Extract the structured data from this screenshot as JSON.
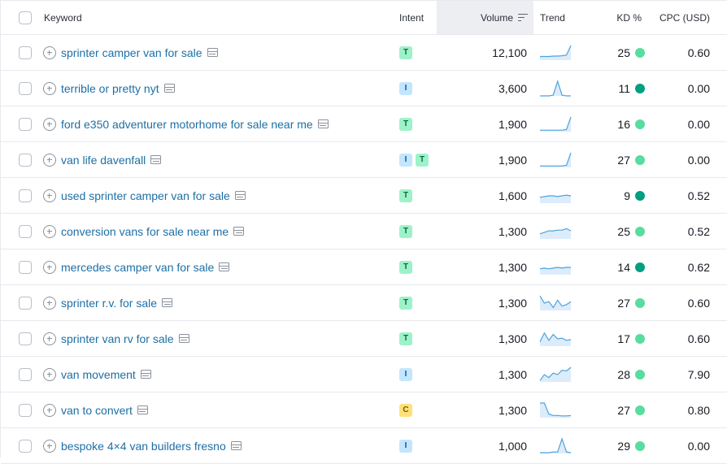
{
  "columns": {
    "keyword": "Keyword",
    "intent": "Intent",
    "volume": "Volume",
    "trend": "Trend",
    "kd": "KD %",
    "cpc": "CPC (USD)"
  },
  "colors": {
    "kd_light": "#59dc9f",
    "kd_dark": "#009f81",
    "trend_line": "#4ea3dc",
    "trend_fill": "#dcecfb"
  },
  "rows": [
    {
      "keyword": "sprinter camper van for sale",
      "intents": [
        "T"
      ],
      "volume": "12,100",
      "trend": [
        0.25,
        0.25,
        0.25,
        0.28,
        0.28,
        0.3,
        0.35,
        1.0
      ],
      "kd": "25",
      "kd_level": "light",
      "cpc": "0.60"
    },
    {
      "keyword": "terrible or pretty nyt",
      "intents": [
        "I"
      ],
      "volume": "3,600",
      "trend": [
        0.0,
        0.0,
        0.0,
        0.05,
        1.0,
        0.05,
        0.0,
        0.0
      ],
      "kd": "11",
      "kd_level": "dark",
      "cpc": "0.00"
    },
    {
      "keyword": "ford e350 adventurer motorhome for sale near me",
      "intents": [
        "T"
      ],
      "volume": "1,900",
      "trend": [
        0.1,
        0.1,
        0.1,
        0.1,
        0.1,
        0.1,
        0.15,
        1.0
      ],
      "kd": "16",
      "kd_level": "light",
      "cpc": "0.00"
    },
    {
      "keyword": "van life davenfall",
      "intents": [
        "I",
        "T"
      ],
      "volume": "1,900",
      "trend": [
        0.1,
        0.1,
        0.1,
        0.1,
        0.1,
        0.1,
        0.15,
        1.0
      ],
      "kd": "27",
      "kd_level": "light",
      "cpc": "0.00"
    },
    {
      "keyword": "used sprinter camper van for sale",
      "intents": [
        "T"
      ],
      "volume": "1,600",
      "trend": [
        0.4,
        0.45,
        0.5,
        0.5,
        0.45,
        0.5,
        0.55,
        0.5
      ],
      "kd": "9",
      "kd_level": "dark",
      "cpc": "0.52"
    },
    {
      "keyword": "conversion vans for sale near me",
      "intents": [
        "T"
      ],
      "volume": "1,300",
      "trend": [
        0.35,
        0.45,
        0.55,
        0.55,
        0.6,
        0.6,
        0.7,
        0.55
      ],
      "kd": "25",
      "kd_level": "light",
      "cpc": "0.52"
    },
    {
      "keyword": "mercedes camper van for sale",
      "intents": [
        "T"
      ],
      "volume": "1,300",
      "trend": [
        0.4,
        0.45,
        0.4,
        0.45,
        0.5,
        0.45,
        0.5,
        0.5
      ],
      "kd": "14",
      "kd_level": "dark",
      "cpc": "0.62"
    },
    {
      "keyword": "sprinter r.v. for sale",
      "intents": [
        "T"
      ],
      "volume": "1,300",
      "trend": [
        1.0,
        0.5,
        0.6,
        0.2,
        0.7,
        0.3,
        0.4,
        0.6
      ],
      "kd": "27",
      "kd_level": "light",
      "cpc": "0.60"
    },
    {
      "keyword": "sprinter van rv for sale",
      "intents": [
        "T"
      ],
      "volume": "1,300",
      "trend": [
        0.3,
        0.9,
        0.4,
        0.8,
        0.5,
        0.55,
        0.4,
        0.45
      ],
      "kd": "17",
      "kd_level": "light",
      "cpc": "0.60"
    },
    {
      "keyword": "van movement",
      "intents": [
        "I"
      ],
      "volume": "1,300",
      "trend": [
        0.1,
        0.5,
        0.3,
        0.6,
        0.5,
        0.8,
        0.75,
        1.0
      ],
      "kd": "28",
      "kd_level": "light",
      "cpc": "7.90"
    },
    {
      "keyword": "van to convert",
      "intents": [
        "C"
      ],
      "volume": "1,300",
      "trend": [
        1.0,
        1.0,
        0.25,
        0.15,
        0.15,
        0.12,
        0.12,
        0.15
      ],
      "kd": "27",
      "kd_level": "light",
      "cpc": "0.80"
    },
    {
      "keyword": "bespoke 4×4 van builders fresno",
      "intents": [
        "I"
      ],
      "volume": "1,000",
      "trend": [
        0.05,
        0.05,
        0.05,
        0.1,
        0.1,
        1.0,
        0.1,
        0.05
      ],
      "kd": "29",
      "kd_level": "light",
      "cpc": "0.00"
    }
  ]
}
